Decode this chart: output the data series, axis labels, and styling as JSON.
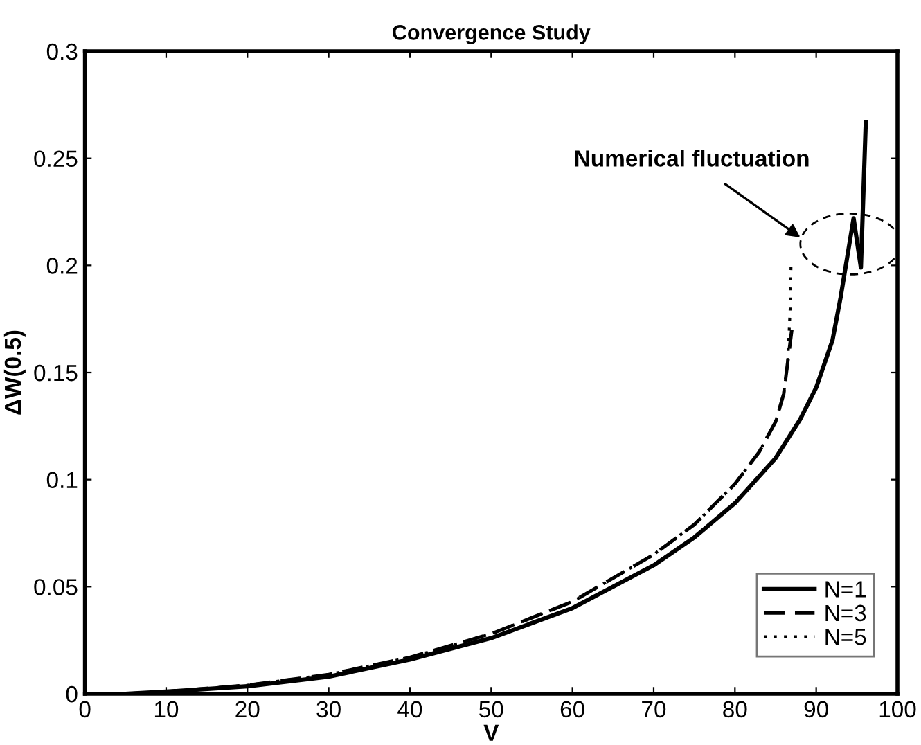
{
  "chart_data": {
    "type": "line",
    "title": "Convergence Study",
    "xlabel": "V",
    "ylabel": "ΔW(0.5)",
    "xlim": [
      0,
      100
    ],
    "ylim": [
      0,
      0.3
    ],
    "xticks": [
      0,
      10,
      20,
      30,
      40,
      50,
      60,
      70,
      80,
      90,
      100
    ],
    "yticks": [
      0,
      0.05,
      0.1,
      0.15,
      0.2,
      0.25,
      0.3
    ],
    "legend": "bottom right",
    "grid": false,
    "annotations": [
      "Numerical fluctuation"
    ],
    "series": [
      {
        "name": "N=1",
        "color": "#000000",
        "line_style": "solid",
        "x": [
          5,
          10,
          20,
          30,
          40,
          50,
          60,
          70,
          75,
          80,
          85,
          88,
          90,
          92,
          93,
          94.6,
          95.5,
          96.1
        ],
        "values": [
          0,
          0.001,
          0.0035,
          0.008,
          0.016,
          0.026,
          0.04,
          0.06,
          0.073,
          0.089,
          0.11,
          0.128,
          0.143,
          0.165,
          0.185,
          0.222,
          0.199,
          0.267
        ]
      },
      {
        "name": "N=3",
        "color": "#000000",
        "line_style": "dashed",
        "x": [
          5,
          10,
          20,
          30,
          40,
          50,
          60,
          70,
          75,
          80,
          83,
          85,
          86,
          86.5,
          87
        ],
        "values": [
          0,
          0.001,
          0.004,
          0.009,
          0.017,
          0.028,
          0.043,
          0.065,
          0.079,
          0.098,
          0.113,
          0.127,
          0.14,
          0.155,
          0.17
        ]
      },
      {
        "name": "N=5",
        "color": "#000000",
        "line_style": "dotted",
        "x": [
          5,
          10,
          20,
          30,
          40,
          50,
          60,
          70,
          75,
          80,
          83,
          85,
          86,
          86.5,
          86.8,
          86.9
        ],
        "values": [
          0,
          0.001,
          0.004,
          0.009,
          0.017,
          0.028,
          0.043,
          0.065,
          0.079,
          0.098,
          0.113,
          0.127,
          0.14,
          0.155,
          0.18,
          0.2
        ]
      }
    ]
  }
}
